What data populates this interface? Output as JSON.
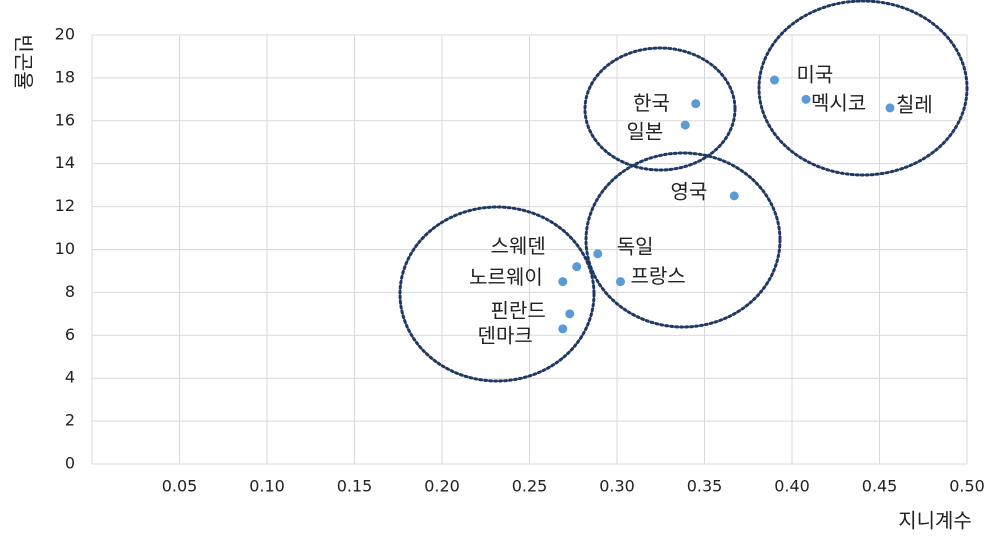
{
  "chart_data": {
    "type": "scatter",
    "x_label": "지니계수",
    "y_label": "빈곤율",
    "labels": [
      "미국",
      "멕시코",
      "칠레",
      "한국",
      "일본",
      "영국",
      "독일",
      "스웨덴",
      "노르웨이",
      "프랑스",
      "핀란드",
      "덴마크"
    ],
    "x": [
      0.39,
      0.408,
      0.456,
      0.345,
      0.339,
      0.367,
      0.289,
      0.277,
      0.269,
      0.302,
      0.273,
      0.269
    ],
    "y": [
      17.9,
      17.0,
      16.6,
      16.8,
      15.8,
      12.5,
      9.8,
      9.2,
      8.5,
      8.5,
      7.0,
      6.3
    ],
    "color": "#5b9bd5",
    "xlim": [
      0,
      0.5
    ],
    "xticks": [
      0.05,
      {
        "value": 0.1,
        "label": "0.10"
      },
      0.15,
      {
        "value": 0.2,
        "label": "0.20"
      },
      0.25,
      {
        "value": 0.3,
        "label": "0.30"
      },
      0.35,
      {
        "value": 0.4,
        "label": "0.40"
      },
      0.45,
      {
        "value": 0.5,
        "label": "0.50"
      }
    ],
    "ylim": [
      0,
      20
    ],
    "yticks": [
      0,
      2,
      4,
      6,
      8,
      10,
      12,
      14,
      16,
      18,
      20
    ],
    "grid": true
  }
}
